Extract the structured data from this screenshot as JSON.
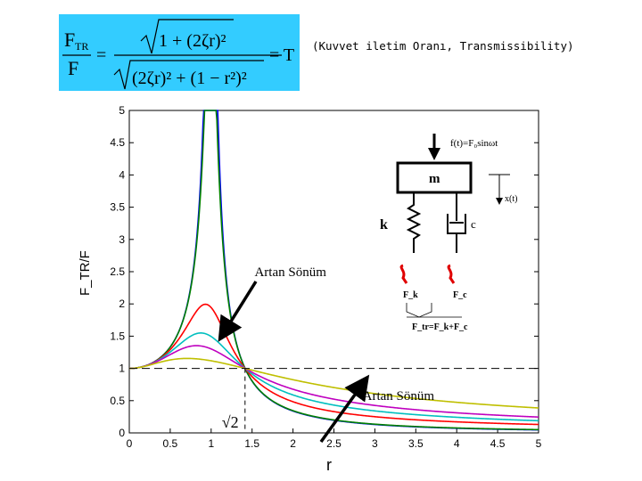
{
  "formula": {
    "lhs_num": "F",
    "lhs_num_sub": "TR",
    "lhs_den": "F",
    "rhs_num": "1 + (2ζr)²",
    "rhs_den": "(2ζr)² + (1 − r²)²",
    "rhs_result": "= T"
  },
  "caption": "(Kuvvet iletim Oranı, Transmissibility)",
  "chart_data": {
    "type": "line",
    "xlabel": "r",
    "ylabel": "F_TR/F",
    "xlim": [
      0,
      5
    ],
    "ylim": [
      0,
      5
    ],
    "xticks": [
      "0",
      "0.5",
      "1",
      "1.5",
      "2",
      "2.5",
      "3",
      "3.5",
      "4",
      "4.5",
      "5"
    ],
    "yticks": [
      "0",
      "0.5",
      "1",
      "1.5",
      "2",
      "2.5",
      "3",
      "3.5",
      "4",
      "4.5",
      "5"
    ],
    "crossover_label": "√2",
    "crossover_x": 1.414,
    "reference_line_y": 1,
    "series": [
      {
        "zeta": 0.05,
        "color": "#0000ff"
      },
      {
        "zeta": 0.07,
        "color": "#008000"
      },
      {
        "zeta": 0.3,
        "color": "#ff0000"
      },
      {
        "zeta": 0.45,
        "color": "#00bfbf"
      },
      {
        "zeta": 0.6,
        "color": "#bf00bf"
      },
      {
        "zeta": 1.0,
        "color": "#bfbf00"
      }
    ],
    "annotations": [
      {
        "text": "Artan Sönüm",
        "x": 1.53,
        "y": 2.5
      },
      {
        "text": "Artan Sönüm",
        "x": 2.85,
        "y": 0.58
      }
    ]
  },
  "diagram": {
    "force_label": "f(t)=F₀sinωt",
    "mass_label": "m",
    "displacement_label": "x(t)",
    "spring_label": "k",
    "damper_label": "c",
    "spring_force_label": "F_k",
    "damper_force_label": "F_c",
    "total_force_label": "F_tr=F_k+F_c"
  }
}
